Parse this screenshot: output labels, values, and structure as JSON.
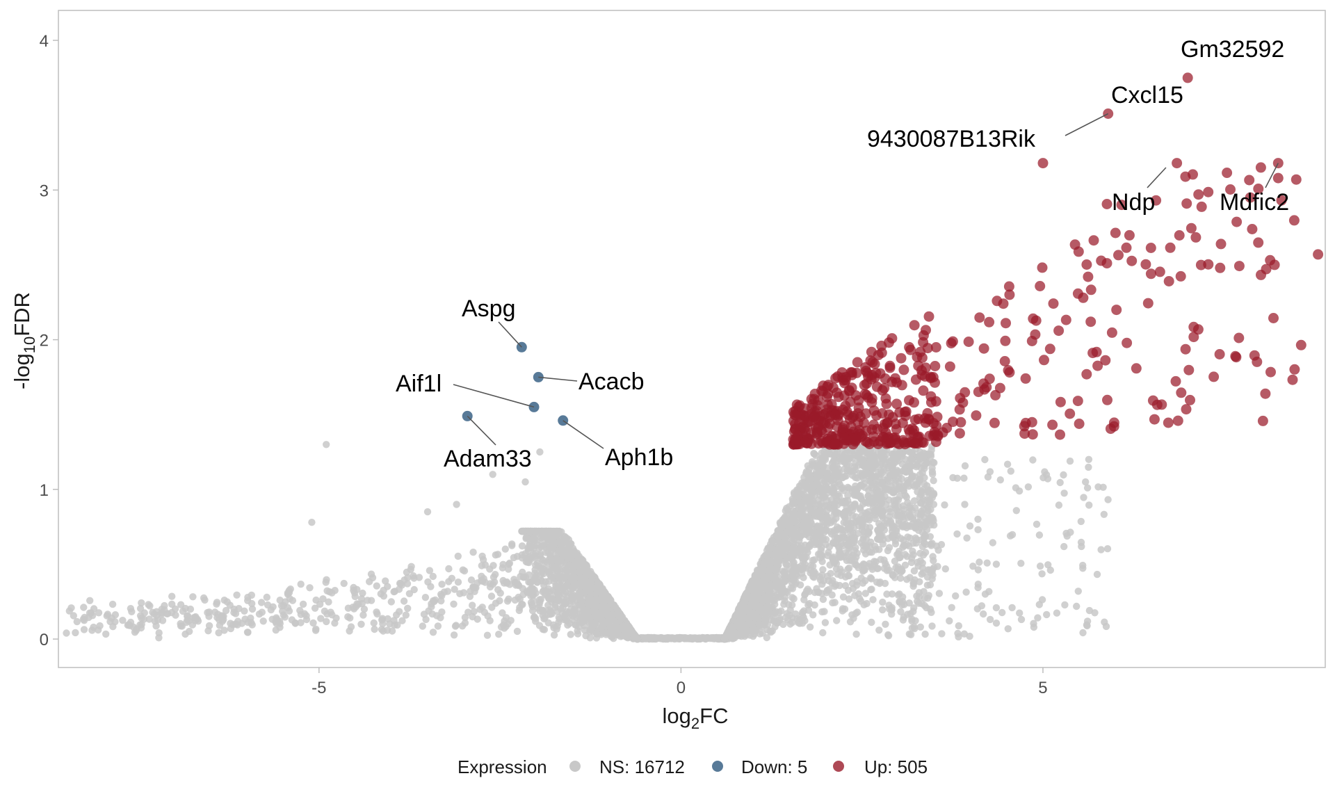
{
  "colors": {
    "ns": "#c8c8c8",
    "down": "#587a98",
    "up": "#9a1b2a",
    "panel_border": "#bdbdbd"
  },
  "chart_data": {
    "type": "scatter",
    "title": "",
    "xlabel_main": "log",
    "xlabel_sub": "2",
    "xlabel_tail": "FC",
    "ylabel_main": "-log",
    "ylabel_sub": "10",
    "ylabel_tail": "FDR",
    "xlim": [
      -8.6,
      8.9
    ],
    "ylim": [
      -0.19,
      4.2
    ],
    "x_ticks": [
      {
        "value": -5,
        "label": "-5"
      },
      {
        "value": 0,
        "label": "0"
      },
      {
        "value": 5,
        "label": "5"
      }
    ],
    "y_ticks": [
      {
        "value": 0,
        "label": "0"
      },
      {
        "value": 1,
        "label": "1"
      },
      {
        "value": 2,
        "label": "2"
      },
      {
        "value": 3,
        "label": "3"
      },
      {
        "value": 4,
        "label": "4"
      }
    ],
    "fdr_threshold_neglog10": 1.3,
    "logfc_threshold": 0.6,
    "legend": {
      "title": "Expression",
      "position": "bottom",
      "entries": [
        {
          "name": "NS: 16712",
          "color": "#c8c8c8"
        },
        {
          "name": "Down: 5",
          "color": "#587a98"
        },
        {
          "name": "Up: 505",
          "color": "#9a1b2a"
        }
      ]
    },
    "series": [
      {
        "name": "Down",
        "points": [
          {
            "x": -2.2,
            "y": 1.95
          },
          {
            "x": -1.97,
            "y": 1.75
          },
          {
            "x": -2.03,
            "y": 1.55
          },
          {
            "x": -1.63,
            "y": 1.46
          },
          {
            "x": -2.95,
            "y": 1.49
          }
        ]
      },
      {
        "name": "Up (highlighted)",
        "points": [
          {
            "x": 7.0,
            "y": 3.75
          },
          {
            "x": 5.9,
            "y": 3.51
          },
          {
            "x": 5.0,
            "y": 3.18
          },
          {
            "x": 6.85,
            "y": 3.18
          },
          {
            "x": 8.25,
            "y": 3.18
          },
          {
            "x": 8.25,
            "y": 3.08
          },
          {
            "x": 8.8,
            "y": 2.57
          },
          {
            "x": 8.2,
            "y": 2.5
          }
        ]
      }
    ],
    "annotations": [
      {
        "gene": "Gm32592",
        "x": 7.0,
        "y": 3.75
      },
      {
        "gene": "Cxcl15",
        "x": 5.9,
        "y": 3.51
      },
      {
        "gene": "9430087B13Rik",
        "x": 5.9,
        "y": 3.51
      },
      {
        "gene": "Ndp",
        "x": 6.7,
        "y": 3.15
      },
      {
        "gene": "Mdfic2",
        "x": 8.25,
        "y": 3.18
      },
      {
        "gene": "Aspg",
        "x": -2.2,
        "y": 1.95
      },
      {
        "gene": "Acacb",
        "x": -1.97,
        "y": 1.75
      },
      {
        "gene": "Aif1l",
        "x": -2.03,
        "y": 1.55
      },
      {
        "gene": "Adam33",
        "x": -2.95,
        "y": 1.49
      },
      {
        "gene": "Aph1b",
        "x": -1.63,
        "y": 1.46
      }
    ]
  }
}
